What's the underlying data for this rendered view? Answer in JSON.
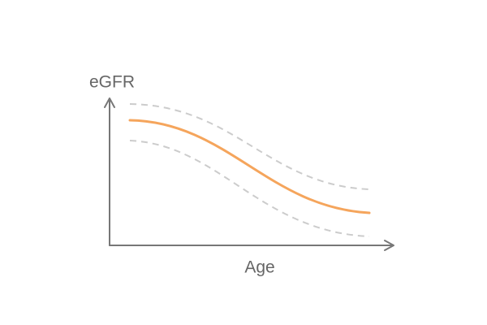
{
  "axes": {
    "y_label": "eGFR",
    "x_label": "Age"
  }
}
